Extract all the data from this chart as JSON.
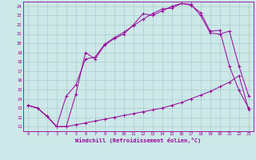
{
  "xlabel": "Windchill (Refroidissement éolien,°C)",
  "bg_color": "#cce8e8",
  "line_color": "#990099",
  "grid_color": "#aacccc",
  "xlim": [
    -0.5,
    23.5
  ],
  "ylim": [
    10.5,
    24.5
  ],
  "xticks": [
    0,
    1,
    2,
    3,
    4,
    5,
    6,
    7,
    8,
    9,
    10,
    11,
    12,
    13,
    14,
    15,
    16,
    17,
    18,
    19,
    20,
    21,
    22,
    23
  ],
  "yticks": [
    11,
    12,
    13,
    14,
    15,
    16,
    17,
    18,
    19,
    20,
    21,
    22,
    23,
    24
  ],
  "line1_x": [
    0,
    1,
    2,
    3,
    4,
    5,
    6,
    7,
    8,
    9,
    10,
    11,
    12,
    13,
    14,
    15,
    16,
    17,
    18,
    19,
    20,
    21,
    22,
    23
  ],
  "line1_y": [
    13.3,
    13.0,
    12.1,
    11.0,
    11.0,
    11.2,
    11.4,
    11.6,
    11.8,
    12.0,
    12.2,
    12.4,
    12.6,
    12.8,
    13.0,
    13.3,
    13.6,
    14.0,
    14.4,
    14.8,
    15.3,
    15.8,
    16.5,
    12.8
  ],
  "line2_x": [
    0,
    1,
    2,
    3,
    4,
    5,
    6,
    7,
    8,
    9,
    10,
    11,
    12,
    13,
    14,
    15,
    16,
    17,
    18,
    19,
    20,
    21,
    22,
    23
  ],
  "line2_y": [
    13.3,
    13.0,
    12.1,
    11.0,
    14.3,
    15.5,
    18.3,
    18.5,
    19.9,
    20.6,
    21.2,
    21.9,
    22.6,
    23.2,
    23.7,
    23.8,
    24.3,
    24.1,
    23.3,
    21.3,
    21.4,
    17.5,
    14.9,
    13.0
  ],
  "line3_x": [
    0,
    1,
    2,
    3,
    4,
    5,
    6,
    7,
    8,
    9,
    10,
    11,
    12,
    13,
    14,
    15,
    16,
    17,
    18,
    19,
    20,
    21,
    22,
    23
  ],
  "line3_y": [
    13.3,
    13.0,
    12.1,
    11.0,
    11.0,
    14.5,
    19.0,
    18.3,
    19.8,
    20.5,
    21.0,
    22.0,
    23.2,
    23.0,
    23.5,
    24.0,
    24.3,
    24.2,
    23.0,
    21.1,
    21.0,
    21.3,
    17.5,
    14.3
  ]
}
